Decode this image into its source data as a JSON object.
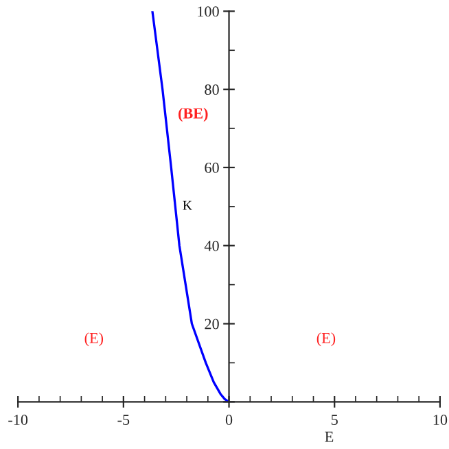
{
  "chart_data": {
    "type": "line",
    "xlabel": "E",
    "x": [
      0,
      -0.2,
      -0.4,
      -0.72,
      -1.1,
      -1.76,
      -2.35,
      -2.74,
      -3.15,
      -3.63
    ],
    "series": [
      {
        "color": "#0000ff",
        "values": [
          0,
          0.7,
          2,
          5,
          10,
          20,
          40,
          60,
          80,
          100
        ]
      }
    ],
    "xlim": [
      -10,
      10
    ],
    "ylim": [
      0,
      100
    ],
    "xticks": [
      -10,
      -5,
      0,
      5,
      10
    ],
    "yticks": [
      {
        "value": 0,
        "label": null
      },
      20,
      40,
      60,
      80,
      100
    ],
    "annotations": [
      "(BE)",
      {
        "text": "K",
        "x": -2.2,
        "y": 50
      },
      "(E)",
      "(E)"
    ]
  }
}
